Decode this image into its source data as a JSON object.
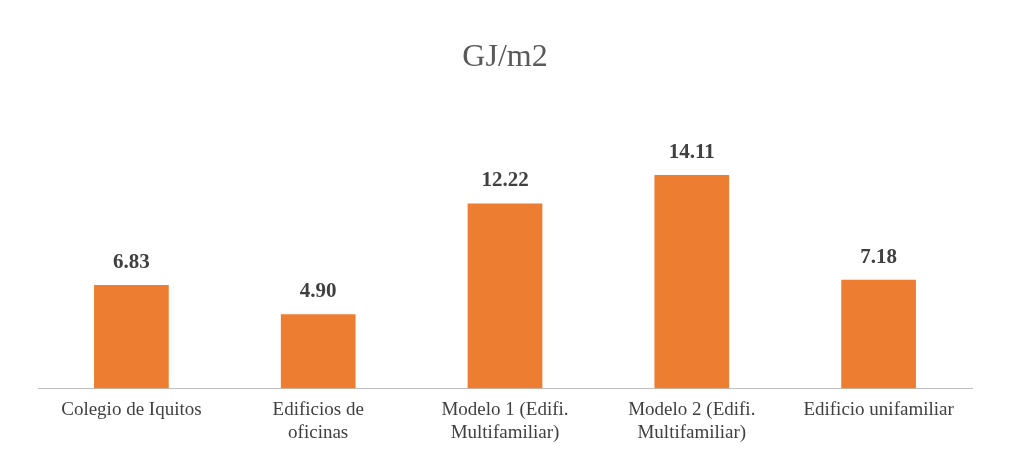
{
  "chart_data": {
    "type": "bar",
    "title": "GJ/m2",
    "categories": [
      "Colegio de Iquitos",
      "Edificios de oficinas",
      "Modelo 1 (Edifi. Multifamiliar)",
      "Modelo 2 (Edifi. Multifamiliar)",
      "Edificio unifamiliar"
    ],
    "values": [
      6.83,
      4.9,
      12.22,
      14.11,
      7.18
    ],
    "value_labels": [
      "6.83",
      "4.90",
      "12.22",
      "14.11",
      "7.18"
    ],
    "color": "#ed7d31",
    "grid": false,
    "legend": false
  }
}
